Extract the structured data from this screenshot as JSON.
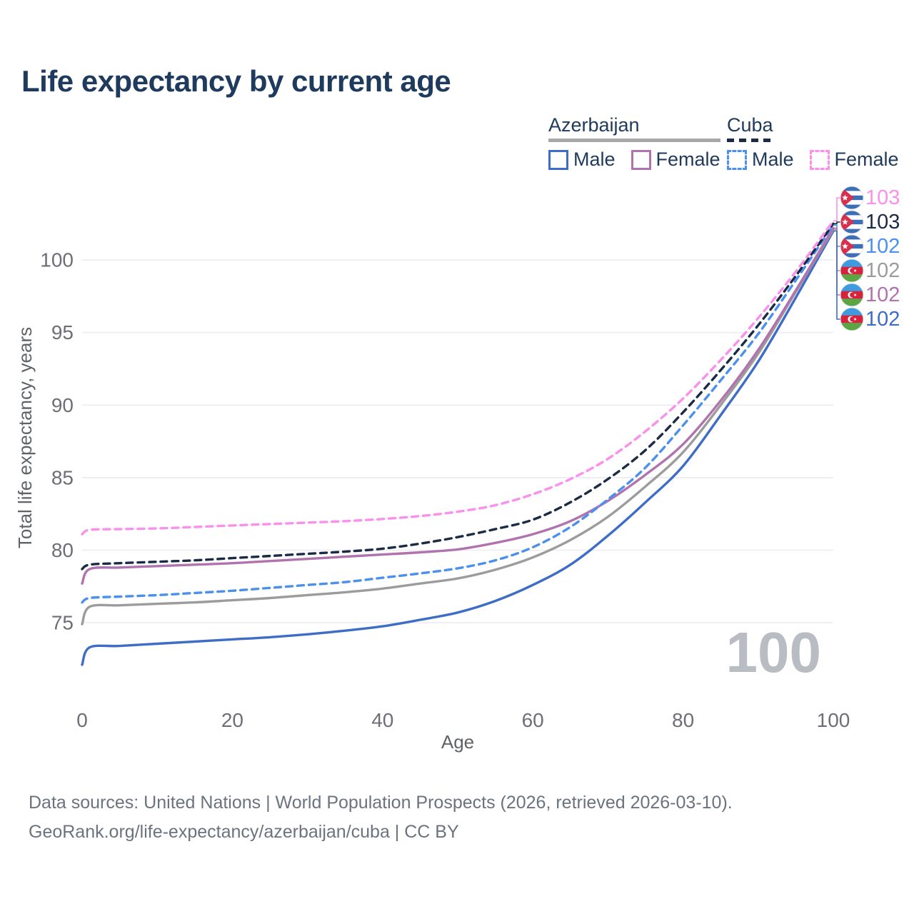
{
  "title": "Life expectancy by current age",
  "legend": {
    "groups": [
      {
        "label": "Azerbaijan",
        "line_style": "solid",
        "underline_color": "#a8a8a8",
        "items": [
          {
            "label": "Male",
            "color": "#3e6dc6",
            "dashed": false
          },
          {
            "label": "Female",
            "color": "#b173ae",
            "dashed": false
          }
        ]
      },
      {
        "label": "Cuba",
        "line_style": "dashed",
        "underline_color": "#1b2b45",
        "items": [
          {
            "label": "Male",
            "color": "#4b90ee",
            "dashed": true
          },
          {
            "label": "Female",
            "color": "#fa90ec",
            "dashed": true
          }
        ]
      }
    ]
  },
  "chart_data": {
    "type": "line",
    "title": "Life expectancy by current age",
    "xlabel": "Age",
    "ylabel": "Total life expectancy, years",
    "x": [
      0,
      1,
      5,
      10,
      15,
      20,
      25,
      30,
      35,
      40,
      45,
      50,
      55,
      60,
      65,
      70,
      75,
      80,
      85,
      90,
      95,
      100
    ],
    "xticks": [
      0,
      20,
      40,
      60,
      80,
      100
    ],
    "yticks": [
      75,
      80,
      85,
      90,
      95,
      100
    ],
    "xlim": [
      0,
      100
    ],
    "ylim": [
      72,
      103.5
    ],
    "grid": "horizontal-only",
    "legend_position": "top-right",
    "series": [
      {
        "key": "az_male",
        "name": "Azerbaijan Male",
        "color": "#3e6dc6",
        "dashed": false,
        "values": [
          72.1,
          73.3,
          73.4,
          73.55,
          73.7,
          73.85,
          74.0,
          74.2,
          74.45,
          74.75,
          75.2,
          75.7,
          76.5,
          77.6,
          79.0,
          81.0,
          83.3,
          85.8,
          89.3,
          93.0,
          97.4,
          102.0
        ]
      },
      {
        "key": "az_total",
        "name": "Azerbaijan Total",
        "color": "#9c9c9c",
        "dashed": false,
        "values": [
          74.9,
          76.1,
          76.2,
          76.3,
          76.4,
          76.55,
          76.7,
          76.9,
          77.1,
          77.35,
          77.7,
          78.05,
          78.65,
          79.5,
          80.7,
          82.3,
          84.4,
          86.75,
          90.0,
          93.55,
          97.8,
          102.1
        ]
      },
      {
        "key": "az_female",
        "name": "Azerbaijan Female",
        "color": "#b173ae",
        "dashed": false,
        "values": [
          77.7,
          78.7,
          78.8,
          78.9,
          79.0,
          79.1,
          79.25,
          79.4,
          79.55,
          79.7,
          79.85,
          80.05,
          80.5,
          81.1,
          82.0,
          83.4,
          85.2,
          87.3,
          90.3,
          93.8,
          97.9,
          102.2
        ]
      },
      {
        "key": "cuba_male",
        "name": "Cuba Male",
        "color": "#4b90ee",
        "dashed": true,
        "values": [
          76.4,
          76.7,
          76.8,
          76.9,
          77.05,
          77.2,
          77.4,
          77.6,
          77.8,
          78.1,
          78.4,
          78.75,
          79.3,
          80.2,
          81.6,
          83.5,
          85.7,
          88.6,
          91.7,
          94.9,
          98.6,
          102.4
        ]
      },
      {
        "key": "cuba_total",
        "name": "Cuba Total",
        "color": "#1c2b45",
        "dashed": true,
        "values": [
          78.7,
          79.0,
          79.1,
          79.2,
          79.3,
          79.45,
          79.6,
          79.75,
          79.9,
          80.1,
          80.45,
          80.9,
          81.45,
          82.1,
          83.3,
          84.9,
          86.9,
          89.5,
          92.4,
          95.5,
          98.9,
          102.5
        ]
      },
      {
        "key": "cuba_female",
        "name": "Cuba Female",
        "color": "#fa90ec",
        "dashed": true,
        "values": [
          81.1,
          81.4,
          81.45,
          81.5,
          81.6,
          81.7,
          81.8,
          81.9,
          82.0,
          82.15,
          82.35,
          82.65,
          83.1,
          83.85,
          84.9,
          86.3,
          88.2,
          90.45,
          93.1,
          96.0,
          99.2,
          102.7
        ]
      }
    ],
    "end_labels": [
      {
        "series": "cuba_female",
        "flag": "cuba",
        "text": "103"
      },
      {
        "series": "cuba_total",
        "flag": "cuba",
        "text": "103"
      },
      {
        "series": "cuba_male",
        "flag": "cuba",
        "text": "102"
      },
      {
        "series": "az_total",
        "flag": "azerbaijan",
        "text": "102"
      },
      {
        "series": "az_female",
        "flag": "azerbaijan",
        "text": "102"
      },
      {
        "series": "az_male",
        "flag": "azerbaijan",
        "text": "102"
      }
    ]
  },
  "hover_age_display": "100",
  "colors": {
    "title": "#1e3a5c",
    "axis_text": "#6e6e78",
    "axis_title_text": "#5f6368",
    "gridline": "#ececf1",
    "watermark": "#b9bcc3",
    "footer_text": "#6b7280",
    "flag_cuba_blue": "#3c6fb6",
    "flag_cuba_red": "#d6304c",
    "flag_az_blue": "#3f9be0",
    "flag_az_red": "#d5233e",
    "flag_az_green": "#5ba643"
  },
  "footer": {
    "line1": "Data sources: United Nations | World Population Prospects (2026, retrieved 2026-03-10).",
    "line2": "GeoRank.org/life-expectancy/azerbaijan/cuba | CC BY"
  }
}
